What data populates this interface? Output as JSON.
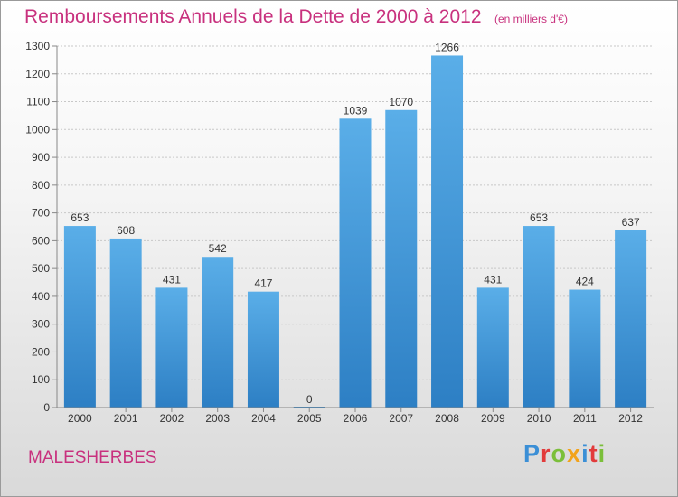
{
  "title": "Remboursements Annuels de la Dette de 2000 à 2012",
  "unit": "(en milliers d'€)",
  "city": "MALESHERBES",
  "logo": {
    "letters": [
      {
        "ch": "P",
        "color": "#3b8fd6"
      },
      {
        "ch": "r",
        "color": "#e23b3b"
      },
      {
        "ch": "o",
        "color": "#7bbf3a"
      },
      {
        "ch": "x",
        "color": "#f2a31b"
      },
      {
        "ch": "i",
        "color": "#3b8fd6"
      },
      {
        "ch": "t",
        "color": "#e23b3b"
      },
      {
        "ch": "i",
        "color": "#7bbf3a"
      }
    ]
  },
  "chart_data": {
    "type": "bar",
    "categories": [
      "2000",
      "2001",
      "2002",
      "2003",
      "2004",
      "2005",
      "2006",
      "2007",
      "2008",
      "2009",
      "2010",
      "2011",
      "2012"
    ],
    "values": [
      653,
      608,
      431,
      542,
      417,
      0,
      1039,
      1070,
      1266,
      431,
      653,
      424,
      637
    ],
    "ylim": [
      0,
      1300
    ],
    "yticks": [
      0,
      100,
      200,
      300,
      400,
      500,
      600,
      700,
      800,
      900,
      1000,
      1100,
      1200,
      1300
    ],
    "grid": true,
    "bar_color_top": "#5aaee8",
    "bar_color_bottom": "#2d7fc4"
  }
}
